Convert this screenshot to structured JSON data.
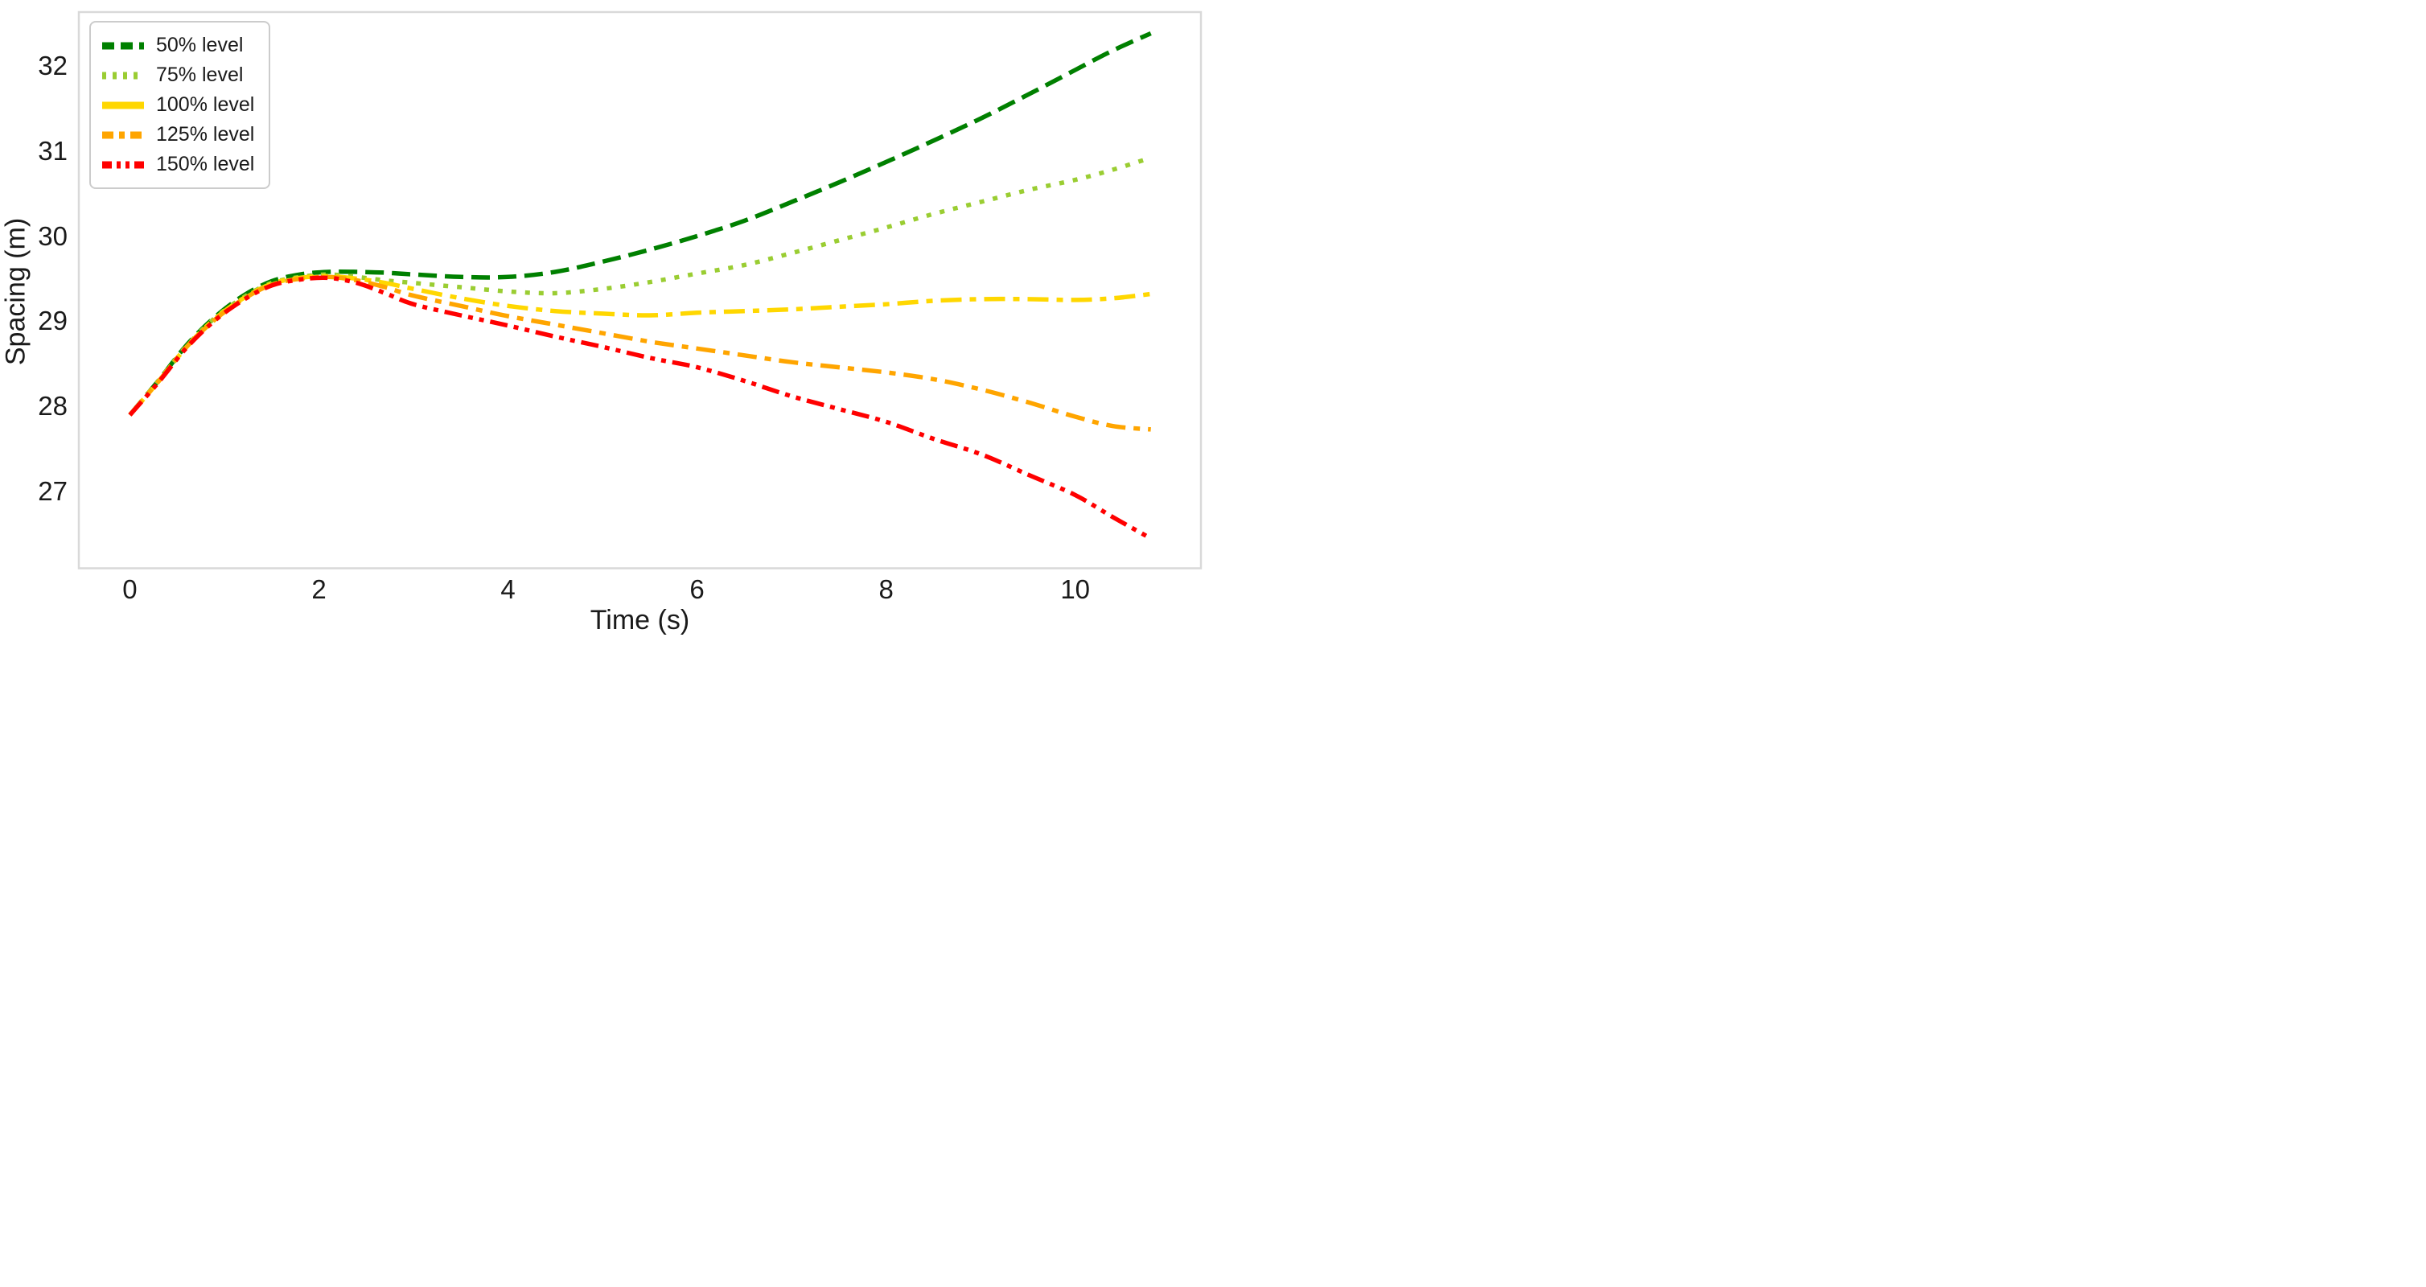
{
  "chart_data": {
    "type": "line",
    "title": "",
    "xlabel": "Time (s)",
    "ylabel": "Spacing (m)",
    "xlim": [
      -0.54,
      11.33
    ],
    "ylim": [
      26.1,
      32.63
    ],
    "xticks": [
      0,
      2,
      4,
      6,
      8,
      10
    ],
    "yticks": [
      27,
      28,
      29,
      30,
      31,
      32
    ],
    "grid": false,
    "background": "#ffffff",
    "axis_border_color": "#d9d9d9",
    "legend_position": "upper left",
    "x": [
      0,
      0.3,
      0.6,
      0.9,
      1.2,
      1.5,
      1.8,
      2.1,
      2.4,
      2.7,
      3.0,
      3.5,
      4.0,
      4.5,
      5.0,
      5.5,
      6.0,
      6.5,
      7.0,
      7.5,
      8.0,
      8.5,
      9.0,
      9.5,
      10.0,
      10.4,
      10.8
    ],
    "series": [
      {
        "name": "50% level",
        "color": "#008000",
        "dash": "dashed",
        "values": [
          27.9,
          28.3,
          28.72,
          29.05,
          29.3,
          29.47,
          29.55,
          29.58,
          29.58,
          29.57,
          29.55,
          29.52,
          29.52,
          29.58,
          29.7,
          29.84,
          30.0,
          30.18,
          30.4,
          30.63,
          30.87,
          31.12,
          31.38,
          31.66,
          31.95,
          32.18,
          32.38
        ]
      },
      {
        "name": "75% level",
        "color": "#9acd32",
        "dash": "dotted",
        "values": [
          27.9,
          28.3,
          28.71,
          29.04,
          29.28,
          29.45,
          29.52,
          29.55,
          29.52,
          29.48,
          29.45,
          29.4,
          29.35,
          29.33,
          29.38,
          29.46,
          29.56,
          29.66,
          29.8,
          29.95,
          30.1,
          30.26,
          30.4,
          30.54,
          30.66,
          30.78,
          30.92
        ]
      },
      {
        "name": "100% level",
        "color": "#ffd700",
        "dash": "dashdot_long",
        "values": [
          27.9,
          28.29,
          28.7,
          29.03,
          29.27,
          29.44,
          29.51,
          29.53,
          29.5,
          29.45,
          29.38,
          29.27,
          29.18,
          29.12,
          29.09,
          29.07,
          29.1,
          29.12,
          29.14,
          29.17,
          29.2,
          29.24,
          29.26,
          29.26,
          29.25,
          29.27,
          29.32
        ]
      },
      {
        "name": "125% level",
        "color": "#ffa500",
        "dash": "dashdot",
        "values": [
          27.9,
          28.29,
          28.7,
          29.02,
          29.26,
          29.43,
          29.5,
          29.52,
          29.48,
          29.4,
          29.3,
          29.18,
          29.06,
          28.96,
          28.86,
          28.76,
          28.68,
          28.6,
          28.52,
          28.46,
          28.4,
          28.32,
          28.2,
          28.05,
          27.88,
          27.77,
          27.73
        ]
      },
      {
        "name": "150% level",
        "color": "#ff0000",
        "dash": "dashdotdot",
        "values": [
          27.9,
          28.28,
          28.69,
          29.01,
          29.25,
          29.42,
          29.49,
          29.51,
          29.45,
          29.33,
          29.2,
          29.07,
          28.95,
          28.82,
          28.7,
          28.57,
          28.46,
          28.3,
          28.12,
          27.97,
          27.82,
          27.62,
          27.44,
          27.2,
          26.96,
          26.7,
          26.45
        ]
      }
    ]
  }
}
